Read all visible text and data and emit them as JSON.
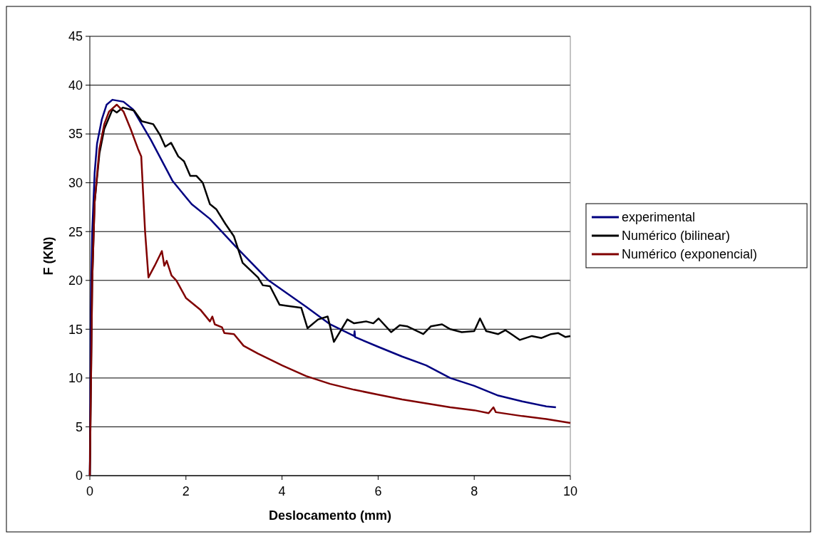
{
  "chart_data": {
    "type": "line",
    "xlabel": "Deslocamento (mm)",
    "ylabel": "F (KN)",
    "xlim": [
      0,
      10
    ],
    "xticks": [
      0,
      2,
      4,
      6,
      8,
      10
    ],
    "ylim": [
      0,
      45
    ],
    "yticks": [
      0,
      5,
      10,
      15,
      20,
      25,
      30,
      35,
      40,
      45
    ],
    "grid": "y",
    "legend": "right",
    "line_style": "solid",
    "marker": "none",
    "series": [
      {
        "name": "experimental",
        "color": "#000080",
        "x": [
          0,
          0.02,
          0.05,
          0.1,
          0.15,
          0.25,
          0.35,
          0.47,
          0.7,
          0.9,
          1.27,
          1.72,
          2.12,
          2.5,
          3.03,
          3.72,
          4.5,
          5,
          5.5,
          5.51,
          5.52,
          6,
          6.5,
          7,
          7.5,
          8,
          8.5,
          9,
          9.5,
          9.7
        ],
        "values": [
          0,
          17,
          25,
          31,
          34,
          36.5,
          38,
          38.5,
          38.3,
          37.5,
          34.4,
          30.2,
          27.8,
          26.3,
          23.5,
          20,
          17.3,
          15.5,
          14.3,
          14.8,
          14.2,
          13.2,
          12.2,
          11.3,
          10,
          9.2,
          8.2,
          7.6,
          7.1,
          7
        ]
      },
      {
        "name": "Numérico (bilinear)",
        "color": "#000000",
        "x": [
          0,
          0.05,
          0.1,
          0.2,
          0.3,
          0.47,
          0.56,
          0.69,
          0.92,
          1.08,
          1.32,
          1.46,
          1.57,
          1.69,
          1.84,
          1.96,
          2.09,
          2.22,
          2.35,
          2.5,
          2.63,
          2.82,
          3.0,
          3.18,
          3.5,
          3.6,
          3.75,
          3.95,
          4.1,
          4.4,
          4.53,
          4.75,
          4.95,
          5.08,
          5.36,
          5.5,
          5.75,
          5.9,
          6.01,
          6.27,
          6.45,
          6.6,
          6.94,
          7.1,
          7.33,
          7.5,
          7.74,
          8.0,
          8.12,
          8.25,
          8.5,
          8.65,
          8.8,
          8.95,
          9.2,
          9.4,
          9.6,
          9.75,
          9.9,
          10
        ],
        "values": [
          0,
          20,
          28,
          33,
          35.5,
          37.5,
          37.2,
          37.7,
          37.4,
          36.3,
          36,
          34.9,
          33.7,
          34.1,
          32.7,
          32.2,
          30.7,
          30.7,
          30,
          27.8,
          27.3,
          25.8,
          24.5,
          21.8,
          20.3,
          19.5,
          19.4,
          17.5,
          17.4,
          17.2,
          15.1,
          16,
          16.3,
          13.7,
          16,
          15.6,
          15.8,
          15.6,
          16.1,
          14.7,
          15.4,
          15.3,
          14.5,
          15.3,
          15.5,
          15,
          14.7,
          14.8,
          16.1,
          14.8,
          14.5,
          14.9,
          14.4,
          13.9,
          14.3,
          14.1,
          14.5,
          14.6,
          14.2,
          14.3
        ]
      },
      {
        "name": "Numérico (exponencial)",
        "color": "#800000",
        "x": [
          0,
          0.05,
          0.1,
          0.2,
          0.3,
          0.4,
          0.56,
          0.7,
          0.85,
          1.0,
          1.07,
          1.15,
          1.22,
          1.35,
          1.45,
          1.5,
          1.55,
          1.6,
          1.7,
          1.8,
          2.0,
          2.3,
          2.5,
          2.55,
          2.6,
          2.75,
          2.8,
          3.0,
          3.2,
          3.5,
          4,
          4.5,
          5,
          5.5,
          6,
          6.5,
          7,
          7.5,
          8,
          8.3,
          8.4,
          8.45,
          9,
          9.5,
          10
        ],
        "values": [
          0,
          20,
          28,
          33.5,
          36,
          37.3,
          38,
          37.3,
          35.5,
          33.5,
          32.7,
          25,
          20.3,
          21.5,
          22.5,
          23,
          21.5,
          22,
          20.5,
          20,
          18.2,
          17,
          15.8,
          16.3,
          15.5,
          15.2,
          14.6,
          14.5,
          13.3,
          12.5,
          11.3,
          10.2,
          9.4,
          8.8,
          8.3,
          7.8,
          7.4,
          7,
          6.7,
          6.4,
          7,
          6.5,
          6.1,
          5.8,
          5.4
        ]
      }
    ]
  }
}
